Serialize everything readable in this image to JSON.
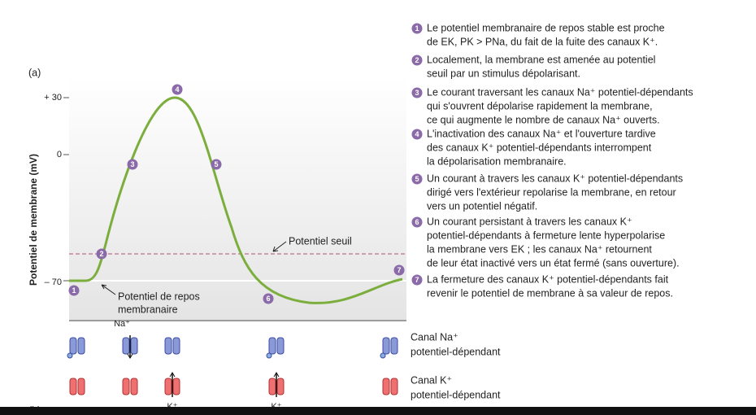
{
  "panel_a": {
    "label": "(a)",
    "axis_title": "Potentiel de membrane (mV)",
    "ticks": [
      "+ 30",
      "0",
      "– 70"
    ],
    "threshold_label": "Potentiel seuil",
    "rest_label": [
      "Potentiel de repos",
      "membranaire"
    ],
    "markers": [
      "1",
      "2",
      "3",
      "4",
      "5",
      "6",
      "7"
    ]
  },
  "panel_b": {
    "label": "(b)",
    "na_label": "Na⁺",
    "k_labels": [
      "K⁺",
      "K⁺"
    ],
    "legend": [
      {
        "lines": [
          "Canal Na⁺",
          "potentiel-dépendant"
        ]
      },
      {
        "lines": [
          "Canal K⁺",
          "potentiel-dépendant"
        ]
      }
    ]
  },
  "steps": [
    {
      "number": "1",
      "lines": [
        "Le potentiel membranaire de repos stable est proche",
        "de EK, PK > PNa, du fait de la fuite des canaux K⁺."
      ]
    },
    {
      "number": "2",
      "lines": [
        "Localement, la membrane est amenée au potentiel",
        "seuil par un stimulus dépolarisant."
      ]
    },
    {
      "number": "3",
      "lines": [
        "Le courant traversant les canaux Na⁺ potentiel-dépendants",
        "qui s'ouvrent dépolarise rapidement la membrane,",
        "ce qui augmente le nombre de canaux Na⁺ ouverts."
      ]
    },
    {
      "number": "4",
      "lines": [
        "L'inactivation des canaux Na⁺ et l'ouverture tardive",
        "des canaux K⁺ potentiel-dépendants interrompent",
        "la dépolarisation membranaire."
      ]
    },
    {
      "number": "5",
      "lines": [
        "Un courant à travers les canaux K⁺ potentiel-dépendants",
        "dirigé vers l'extérieur repolarise la membrane, en retour",
        "vers un potentiel négatif."
      ]
    },
    {
      "number": "6",
      "lines": [
        "Un courant persistant à travers les canaux K⁺",
        "potentiel-dépendants à fermeture lente hyperpolarise",
        "la membrane vers EK ; les canaux Na⁺ retournent",
        "de leur état inactivé vers un état fermé (sans ouverture)."
      ]
    },
    {
      "number": "7",
      "lines": [
        "La fermeture des canaux K⁺ potentiel-dépendants fait",
        "revenir le potentiel de membrane à sa valeur de repos."
      ]
    }
  ]
}
